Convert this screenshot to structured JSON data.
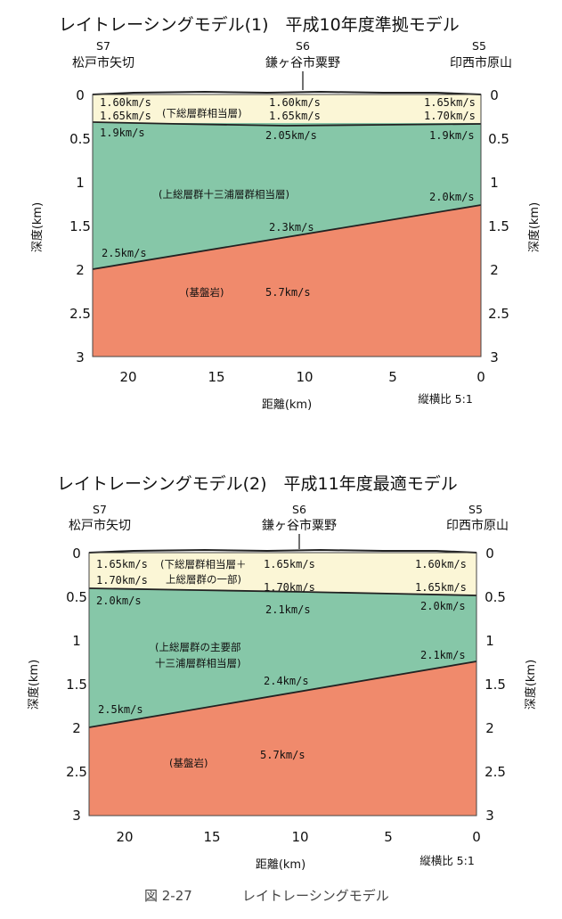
{
  "panels": [
    {
      "title": "レイトレーシングモデル(1)　平成10年度準拠モデル",
      "stations": {
        "left": {
          "code": "S7",
          "name": "松戸市矢切"
        },
        "center": {
          "code": "S6",
          "name": "鎌ヶ谷市粟野"
        },
        "right": {
          "code": "S5",
          "name": "印西市原山"
        }
      },
      "depth_ticks": [
        "0",
        "0.5",
        "1",
        "1.5",
        "2",
        "2.5",
        "3"
      ],
      "distance_ticks": [
        "20",
        "15",
        "10",
        "5",
        "0"
      ],
      "y_label": "深度(km)",
      "x_label": "距離(km)",
      "ratio": "縦横比 5:1",
      "layers": [
        {
          "name": "(下総層群相当層)",
          "color": "#fbf6d6"
        },
        {
          "name": "(上総層群十三浦層群相当層)",
          "color": "#86c7a8"
        },
        {
          "name": "(基盤岩)",
          "color": "#f08a6c"
        }
      ],
      "velocity_labels": {
        "l1a": "1.60km/s",
        "l1b": "1.65km/s",
        "c1a": "1.60km/s",
        "c1b": "1.65km/s",
        "r1a": "1.65km/s",
        "r1b": "1.70km/s",
        "l2": "1.9km/s",
        "c2": "2.05km/s",
        "r2": "1.9km/s",
        "r2b": "2.0km/s",
        "c2b": "2.3km/s",
        "l2b": "2.5km/s",
        "c3": "5.7km/s"
      },
      "boundaries_km": {
        "base_layer1": {
          "at_22km": 0.32,
          "at_0km": 0.32
        },
        "basement_top": {
          "at_22km": 2.0,
          "at_0km": 1.25
        }
      }
    },
    {
      "title": "レイトレーシングモデル(2)　平成11年度最適モデル",
      "stations": {
        "left": {
          "code": "S7",
          "name": "松戸市矢切"
        },
        "center": {
          "code": "S6",
          "name": "鎌ヶ谷市粟野"
        },
        "right": {
          "code": "S5",
          "name": "印西市原山"
        }
      },
      "depth_ticks": [
        "0",
        "0.5",
        "1",
        "1.5",
        "2",
        "2.5",
        "3"
      ],
      "distance_ticks": [
        "20",
        "15",
        "10",
        "5",
        "0"
      ],
      "y_label": "深度(km)",
      "x_label": "距離(km)",
      "ratio": "縦横比 5:1",
      "layers": [
        {
          "name": "(下総層群相当層＋",
          "name2": "上総層群の一部)",
          "color": "#fbf6d6"
        },
        {
          "name": "(上総層群の主要部",
          "name2": "十三浦層群相当層)",
          "color": "#86c7a8"
        },
        {
          "name": "(基盤岩)",
          "color": "#f08a6c"
        }
      ],
      "velocity_labels": {
        "l1a": "1.65km/s",
        "l1b": "1.70km/s",
        "c1a": "1.65km/s",
        "c1b": "1.70km/s",
        "r1a": "1.60km/s",
        "r1b": "1.65km/s",
        "l2": "2.0km/s",
        "c2": "2.1km/s",
        "r2": "2.0km/s",
        "r2b": "2.1km/s",
        "c2b": "2.4km/s",
        "l2b": "2.5km/s",
        "c3": "5.7km/s"
      },
      "boundaries_km": {
        "base_layer1": {
          "at_22km": 0.42,
          "at_0km": 0.5
        },
        "basement_top": {
          "at_22km": 2.0,
          "at_0km": 1.25
        }
      }
    }
  ],
  "caption": {
    "figure": "図 2-27",
    "text": "レイトレーシングモデル"
  }
}
